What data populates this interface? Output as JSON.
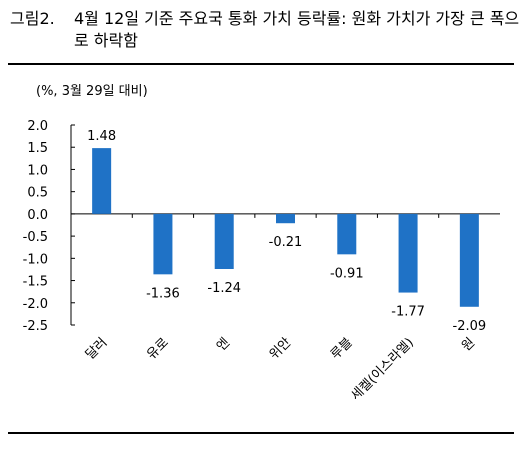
{
  "figure": {
    "label": "그림2.",
    "title": "4월 12일 기준 주요국 통화 가치 등락률: 원화 가치가 가장 큰 폭으로 하락함"
  },
  "chart_data": {
    "type": "bar",
    "unit_label": "(%, 3월 29일 대비)",
    "categories": [
      "달러",
      "유로",
      "엔",
      "위안",
      "루블",
      "세켈(이스라엘)",
      "원"
    ],
    "values": [
      1.48,
      -1.36,
      -1.24,
      -0.21,
      -0.91,
      -1.77,
      -2.09
    ],
    "value_labels": [
      "1.48",
      "-1.36",
      "-1.24",
      "-0.21",
      "-0.91",
      "-1.77",
      "-2.09"
    ],
    "ylim": [
      -2.5,
      2.0
    ],
    "yticks": [
      "2.0",
      "1.5",
      "1.0",
      "0.5",
      "0.0",
      "-0.5",
      "-1.0",
      "-1.5",
      "-2.0",
      "-2.5"
    ],
    "bar_color": "#1f72c6",
    "grid": false,
    "legend": "none"
  }
}
